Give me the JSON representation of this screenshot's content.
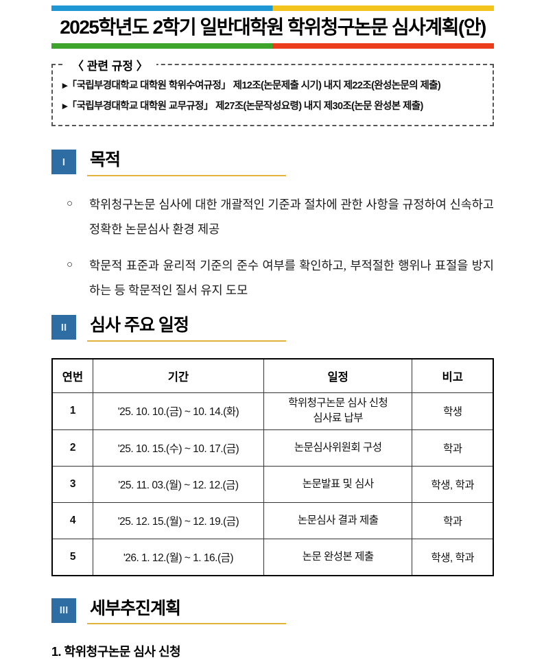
{
  "page": {
    "title": "2025학년도 2학기 일반대학원 학위청구논문 심사계획(안)"
  },
  "colors": {
    "title_bar_top_left": "#1f97d4",
    "title_bar_top_right": "#f2c41d",
    "title_bar_bottom_left": "#3ea32b",
    "title_bar_bottom_right": "#ea3d1c",
    "section_badge": "#2e6da4",
    "section_underline": "#e2b33a"
  },
  "regulations": {
    "legend": "〈 관련 규정 〉",
    "items": [
      "▸「국립부경대학교 대학원 학위수여규정」 제12조(논문제출 시기) 내지 제22조(완성논문의 제출)",
      "▸「국립부경대학교 대학원 교무규정」 제27조(논문작성요령) 내지 제30조(논문 완성본 제출)"
    ]
  },
  "sections": [
    {
      "numeral": "I",
      "title": "목적"
    },
    {
      "numeral": "II",
      "title": "심사 주요 일정"
    },
    {
      "numeral": "III",
      "title": "세부추진계획"
    }
  ],
  "purpose": {
    "marker": "○",
    "bullets": [
      "학위청구논문 심사에 대한 개괄적인 기준과 절차에 관한 사항을 규정하여 신속하고 정확한 논문심사 환경 제공",
      "학문적 표준과 윤리적 기준의 준수 여부를 확인하고, 부적절한 행위나 표절을 방지하는 등 학문적인 질서 유지 도모"
    ]
  },
  "schedule_table": {
    "headers": [
      "연번",
      "기간",
      "일정",
      "비고"
    ],
    "rows": [
      {
        "no": "1",
        "period": "'25. 10. 10.(금) ~ 10. 14.(화)",
        "schedule": "학위청구논문 심사 신청\n심사료 납부",
        "note": "학생"
      },
      {
        "no": "2",
        "period": "'25. 10. 15.(수) ~ 10. 17.(금)",
        "schedule": "논문심사위원회 구성",
        "note": "학과"
      },
      {
        "no": "3",
        "period": "'25. 11. 03.(월) ~ 12. 12.(금)",
        "schedule": "논문발표 및 심사",
        "note": "학생, 학과"
      },
      {
        "no": "4",
        "period": "'25. 12. 15.(월) ~ 12. 19.(금)",
        "schedule": "논문심사 결과 제출",
        "note": "학과"
      },
      {
        "no": "5",
        "period": "'26. 1. 12.(월) ~ 1. 16.(금)",
        "schedule": "논문 완성본 제출",
        "note": "학생, 학과"
      }
    ]
  },
  "detail_plan": {
    "item1": "1. 학위청구논문 심사 신청"
  }
}
